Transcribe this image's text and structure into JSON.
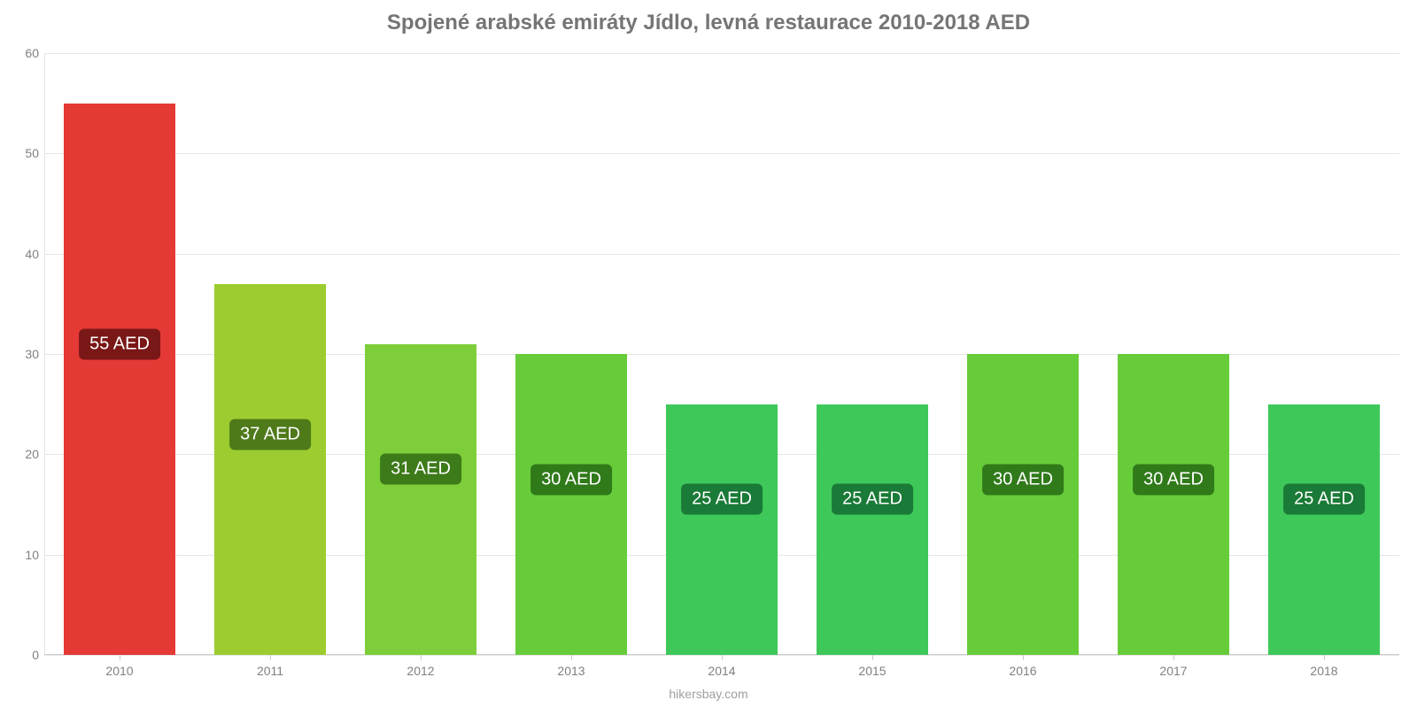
{
  "chart": {
    "type": "bar",
    "title": "Spojené arabské emiráty Jídlo, levná restaurace 2010-2018 AED",
    "title_fontsize": 24,
    "title_color": "#757575",
    "background_color": "#ffffff",
    "grid_color": "#e6e6e6",
    "axis_label_color": "#808080",
    "axis_label_fontsize": 14,
    "footer": "hikersbay.com",
    "footer_color": "#9e9e9e",
    "ylim": [
      0,
      60
    ],
    "ytick_step": 10,
    "yticks": [
      0,
      10,
      20,
      30,
      40,
      50,
      60
    ],
    "bar_width_pct": 74,
    "badge_fontsize": 20,
    "badge_text_color": "#ffffff",
    "badge_radius": 6,
    "categories": [
      "2010",
      "2011",
      "2012",
      "2013",
      "2014",
      "2015",
      "2016",
      "2017",
      "2018"
    ],
    "values": [
      55,
      37,
      31,
      30,
      25,
      25,
      30,
      30,
      25
    ],
    "value_labels": [
      "55 AED",
      "37 AED",
      "31 AED",
      "30 AED",
      "25 AED",
      "25 AED",
      "30 AED",
      "30 AED",
      "25 AED"
    ],
    "bar_colors": [
      "#e53935",
      "#9ccc30",
      "#7dce3a",
      "#67cc3a",
      "#3ec85a",
      "#3ec85a",
      "#67cc3a",
      "#67cc3a",
      "#3ec85a"
    ],
    "badge_colors": [
      "#7a1717",
      "#4f7a1a",
      "#3d7a1a",
      "#307a1a",
      "#1a7a37",
      "#1a7a37",
      "#307a1a",
      "#307a1a",
      "#1a7a37"
    ],
    "badge_y_values": [
      31,
      22,
      18.5,
      17.5,
      15.5,
      15.5,
      17.5,
      17.5,
      15.5
    ]
  }
}
